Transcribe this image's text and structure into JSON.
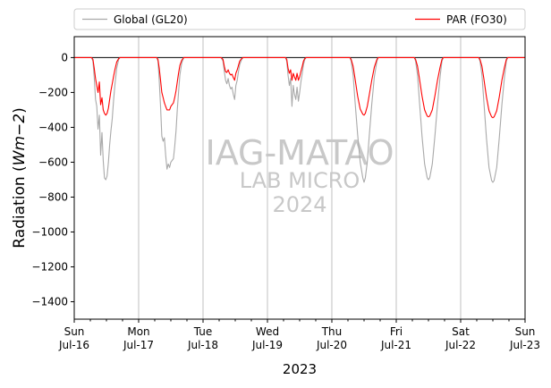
{
  "chart_data": {
    "type": "line",
    "title": "",
    "xlabel": "2023",
    "ylabel_prefix": "Radiation (",
    "ylabel_unit": "Wm−2",
    "ylabel_suffix": ")",
    "ylim": [
      -1500,
      120
    ],
    "yticks": [
      0,
      -200,
      -400,
      -600,
      -800,
      -1000,
      -1200,
      -1400
    ],
    "xlim_days": [
      0,
      7
    ],
    "xticks": [
      {
        "day": 0,
        "weekday": "Sun",
        "date": "Jul-16"
      },
      {
        "day": 1,
        "weekday": "Mon",
        "date": "Jul-17"
      },
      {
        "day": 2,
        "weekday": "Tue",
        "date": "Jul-18"
      },
      {
        "day": 3,
        "weekday": "Wed",
        "date": "Jul-19"
      },
      {
        "day": 4,
        "weekday": "Thu",
        "date": "Jul-20"
      },
      {
        "day": 5,
        "weekday": "Fri",
        "date": "Jul-21"
      },
      {
        "day": 6,
        "weekday": "Sat",
        "date": "Jul-22"
      },
      {
        "day": 7,
        "weekday": "Sun",
        "date": "Jul-23"
      }
    ],
    "grid": "vertical",
    "legend_placement": "top, above plot",
    "zero_line": true,
    "watermark": {
      "line1": "IAG-MATAO",
      "line2": "LAB MICRO",
      "line3": "2024"
    },
    "colors": {
      "global": "#a9a9a9",
      "par": "#ff0000",
      "grid": "#b0b0b0",
      "watermark": "#c8c8c8"
    },
    "series": [
      {
        "name": "Global (GL20)",
        "key": "global",
        "points": [
          [
            0.0,
            0
          ],
          [
            0.27,
            0
          ],
          [
            0.29,
            -20
          ],
          [
            0.31,
            -110
          ],
          [
            0.33,
            -240
          ],
          [
            0.35,
            -280
          ],
          [
            0.37,
            -410
          ],
          [
            0.39,
            -330
          ],
          [
            0.41,
            -560
          ],
          [
            0.43,
            -430
          ],
          [
            0.45,
            -590
          ],
          [
            0.47,
            -690
          ],
          [
            0.49,
            -700
          ],
          [
            0.51,
            -680
          ],
          [
            0.53,
            -600
          ],
          [
            0.55,
            -500
          ],
          [
            0.57,
            -420
          ],
          [
            0.59,
            -350
          ],
          [
            0.61,
            -250
          ],
          [
            0.63,
            -160
          ],
          [
            0.66,
            -60
          ],
          [
            0.69,
            -10
          ],
          [
            0.71,
            0
          ],
          [
            1.28,
            0
          ],
          [
            1.3,
            -20
          ],
          [
            1.32,
            -130
          ],
          [
            1.34,
            -280
          ],
          [
            1.36,
            -450
          ],
          [
            1.38,
            -480
          ],
          [
            1.4,
            -460
          ],
          [
            1.42,
            -560
          ],
          [
            1.44,
            -640
          ],
          [
            1.46,
            -610
          ],
          [
            1.48,
            -630
          ],
          [
            1.5,
            -600
          ],
          [
            1.52,
            -590
          ],
          [
            1.54,
            -580
          ],
          [
            1.56,
            -510
          ],
          [
            1.58,
            -420
          ],
          [
            1.6,
            -300
          ],
          [
            1.62,
            -200
          ],
          [
            1.64,
            -100
          ],
          [
            1.67,
            -30
          ],
          [
            1.7,
            0
          ],
          [
            2.28,
            0
          ],
          [
            2.31,
            -20
          ],
          [
            2.33,
            -80
          ],
          [
            2.35,
            -130
          ],
          [
            2.37,
            -150
          ],
          [
            2.39,
            -120
          ],
          [
            2.41,
            -160
          ],
          [
            2.43,
            -180
          ],
          [
            2.45,
            -170
          ],
          [
            2.47,
            -210
          ],
          [
            2.49,
            -240
          ],
          [
            2.51,
            -160
          ],
          [
            2.53,
            -130
          ],
          [
            2.55,
            -80
          ],
          [
            2.57,
            -40
          ],
          [
            2.6,
            -10
          ],
          [
            2.62,
            0
          ],
          [
            3.28,
            0
          ],
          [
            3.3,
            -20
          ],
          [
            3.32,
            -100
          ],
          [
            3.34,
            -160
          ],
          [
            3.36,
            -120
          ],
          [
            3.38,
            -280
          ],
          [
            3.4,
            -160
          ],
          [
            3.42,
            -210
          ],
          [
            3.44,
            -240
          ],
          [
            3.46,
            -170
          ],
          [
            3.48,
            -250
          ],
          [
            3.5,
            -200
          ],
          [
            3.52,
            -140
          ],
          [
            3.54,
            -90
          ],
          [
            3.56,
            -40
          ],
          [
            3.58,
            -10
          ],
          [
            3.6,
            0
          ],
          [
            4.28,
            0
          ],
          [
            4.3,
            -20
          ],
          [
            4.33,
            -100
          ],
          [
            4.36,
            -250
          ],
          [
            4.4,
            -440
          ],
          [
            4.44,
            -600
          ],
          [
            4.48,
            -690
          ],
          [
            4.5,
            -715
          ],
          [
            4.52,
            -690
          ],
          [
            4.55,
            -600
          ],
          [
            4.58,
            -450
          ],
          [
            4.62,
            -270
          ],
          [
            4.66,
            -110
          ],
          [
            4.7,
            -20
          ],
          [
            4.72,
            0
          ],
          [
            5.28,
            0
          ],
          [
            5.3,
            -20
          ],
          [
            5.33,
            -100
          ],
          [
            5.36,
            -250
          ],
          [
            5.4,
            -450
          ],
          [
            5.44,
            -610
          ],
          [
            5.48,
            -690
          ],
          [
            5.5,
            -700
          ],
          [
            5.52,
            -690
          ],
          [
            5.56,
            -610
          ],
          [
            5.6,
            -450
          ],
          [
            5.64,
            -270
          ],
          [
            5.68,
            -110
          ],
          [
            5.71,
            -20
          ],
          [
            5.73,
            0
          ],
          [
            6.28,
            0
          ],
          [
            6.3,
            -20
          ],
          [
            6.33,
            -100
          ],
          [
            6.36,
            -250
          ],
          [
            6.4,
            -460
          ],
          [
            6.44,
            -630
          ],
          [
            6.48,
            -705
          ],
          [
            6.5,
            -715
          ],
          [
            6.52,
            -705
          ],
          [
            6.56,
            -630
          ],
          [
            6.6,
            -460
          ],
          [
            6.64,
            -270
          ],
          [
            6.68,
            -110
          ],
          [
            6.71,
            -20
          ],
          [
            6.73,
            0
          ],
          [
            7.0,
            0
          ]
        ]
      },
      {
        "name": "PAR (FO30)",
        "key": "par",
        "points": [
          [
            0.0,
            0
          ],
          [
            0.27,
            0
          ],
          [
            0.29,
            -10
          ],
          [
            0.31,
            -60
          ],
          [
            0.33,
            -120
          ],
          [
            0.35,
            -160
          ],
          [
            0.37,
            -200
          ],
          [
            0.39,
            -140
          ],
          [
            0.41,
            -270
          ],
          [
            0.43,
            -230
          ],
          [
            0.45,
            -300
          ],
          [
            0.47,
            -320
          ],
          [
            0.49,
            -330
          ],
          [
            0.51,
            -320
          ],
          [
            0.53,
            -290
          ],
          [
            0.55,
            -240
          ],
          [
            0.57,
            -190
          ],
          [
            0.59,
            -150
          ],
          [
            0.61,
            -110
          ],
          [
            0.63,
            -70
          ],
          [
            0.66,
            -25
          ],
          [
            0.69,
            -5
          ],
          [
            0.71,
            0
          ],
          [
            1.28,
            0
          ],
          [
            1.3,
            -10
          ],
          [
            1.32,
            -60
          ],
          [
            1.34,
            -130
          ],
          [
            1.36,
            -200
          ],
          [
            1.38,
            -230
          ],
          [
            1.4,
            -260
          ],
          [
            1.42,
            -280
          ],
          [
            1.44,
            -300
          ],
          [
            1.46,
            -300
          ],
          [
            1.48,
            -300
          ],
          [
            1.5,
            -280
          ],
          [
            1.52,
            -270
          ],
          [
            1.54,
            -260
          ],
          [
            1.56,
            -230
          ],
          [
            1.58,
            -190
          ],
          [
            1.6,
            -140
          ],
          [
            1.62,
            -90
          ],
          [
            1.64,
            -45
          ],
          [
            1.67,
            -15
          ],
          [
            1.7,
            0
          ],
          [
            2.28,
            0
          ],
          [
            2.31,
            -10
          ],
          [
            2.33,
            -50
          ],
          [
            2.35,
            -80
          ],
          [
            2.37,
            -85
          ],
          [
            2.39,
            -70
          ],
          [
            2.41,
            -90
          ],
          [
            2.43,
            -100
          ],
          [
            2.45,
            -95
          ],
          [
            2.47,
            -115
          ],
          [
            2.49,
            -130
          ],
          [
            2.51,
            -90
          ],
          [
            2.53,
            -70
          ],
          [
            2.55,
            -45
          ],
          [
            2.57,
            -20
          ],
          [
            2.6,
            -5
          ],
          [
            2.62,
            0
          ],
          [
            3.28,
            0
          ],
          [
            3.3,
            -10
          ],
          [
            3.32,
            -60
          ],
          [
            3.34,
            -90
          ],
          [
            3.36,
            -70
          ],
          [
            3.38,
            -130
          ],
          [
            3.4,
            -90
          ],
          [
            3.42,
            -110
          ],
          [
            3.44,
            -130
          ],
          [
            3.46,
            -90
          ],
          [
            3.48,
            -130
          ],
          [
            3.5,
            -110
          ],
          [
            3.52,
            -80
          ],
          [
            3.54,
            -50
          ],
          [
            3.56,
            -20
          ],
          [
            3.58,
            -5
          ],
          [
            3.6,
            0
          ],
          [
            4.28,
            0
          ],
          [
            4.3,
            -10
          ],
          [
            4.33,
            -50
          ],
          [
            4.36,
            -120
          ],
          [
            4.4,
            -220
          ],
          [
            4.44,
            -295
          ],
          [
            4.48,
            -325
          ],
          [
            4.5,
            -330
          ],
          [
            4.52,
            -320
          ],
          [
            4.55,
            -280
          ],
          [
            4.58,
            -215
          ],
          [
            4.62,
            -130
          ],
          [
            4.66,
            -55
          ],
          [
            4.7,
            -10
          ],
          [
            4.72,
            0
          ],
          [
            5.28,
            0
          ],
          [
            5.3,
            -10
          ],
          [
            5.33,
            -50
          ],
          [
            5.36,
            -120
          ],
          [
            5.4,
            -220
          ],
          [
            5.44,
            -300
          ],
          [
            5.48,
            -335
          ],
          [
            5.5,
            -340
          ],
          [
            5.52,
            -335
          ],
          [
            5.56,
            -300
          ],
          [
            5.6,
            -220
          ],
          [
            5.64,
            -130
          ],
          [
            5.68,
            -55
          ],
          [
            5.71,
            -10
          ],
          [
            5.73,
            0
          ],
          [
            6.28,
            0
          ],
          [
            6.3,
            -10
          ],
          [
            6.33,
            -50
          ],
          [
            6.36,
            -120
          ],
          [
            6.4,
            -225
          ],
          [
            6.44,
            -305
          ],
          [
            6.48,
            -340
          ],
          [
            6.5,
            -345
          ],
          [
            6.52,
            -340
          ],
          [
            6.56,
            -305
          ],
          [
            6.6,
            -225
          ],
          [
            6.64,
            -130
          ],
          [
            6.68,
            -55
          ],
          [
            6.71,
            -10
          ],
          [
            6.73,
            0
          ],
          [
            7.0,
            0
          ]
        ]
      }
    ]
  }
}
